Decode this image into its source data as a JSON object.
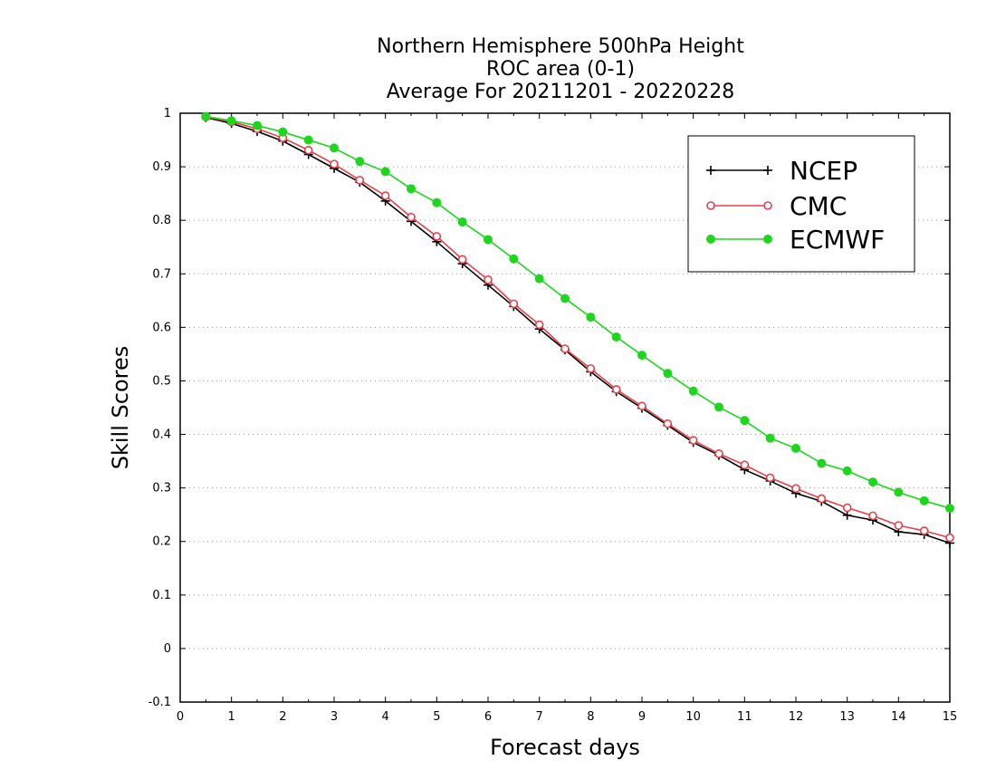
{
  "chart_data": {
    "type": "line",
    "title": [
      "Northern Hemisphere 500hPa Height",
      "ROC area (0-1)",
      "Average For 20211201 - 20220228"
    ],
    "xlabel": "Forecast days",
    "ylabel": "Skill Scores",
    "xlim": [
      0,
      15
    ],
    "ylim": [
      -0.1,
      1
    ],
    "xticks": [
      "0",
      "1",
      "2",
      "3",
      "4",
      "5",
      "6",
      "7",
      "8",
      "9",
      "10",
      "11",
      "12",
      "13",
      "14",
      "15"
    ],
    "yticks": [
      "1",
      "0.9",
      "0.8",
      "0.7",
      "0.6",
      "0.5",
      "0.4",
      "0.3",
      "0.2",
      "0.1",
      "0",
      "-0.1"
    ],
    "grid": "horizontal dotted",
    "legend_position": "top-right",
    "x": [
      0.5,
      1,
      1.5,
      2,
      2.5,
      3,
      3.5,
      4,
      4.5,
      5,
      5.5,
      6,
      6.5,
      7,
      7.5,
      8,
      8.5,
      9,
      9.5,
      10,
      10.5,
      11,
      11.5,
      12,
      12.5,
      13,
      13.5,
      14,
      14.5,
      15
    ],
    "series": [
      {
        "name": "NCEP",
        "color": "#000000",
        "marker": "plus",
        "values": [
          0.992,
          0.981,
          0.966,
          0.948,
          0.923,
          0.897,
          0.871,
          0.836,
          0.798,
          0.76,
          0.719,
          0.679,
          0.639,
          0.597,
          0.558,
          0.517,
          0.48,
          0.449,
          0.417,
          0.385,
          0.361,
          0.334,
          0.313,
          0.29,
          0.275,
          0.249,
          0.24,
          0.218,
          0.213,
          0.197
        ]
      },
      {
        "name": "CMC",
        "color": "#e8404a",
        "marker": "open-circle",
        "values": [
          0.993,
          0.984,
          0.971,
          0.954,
          0.931,
          0.905,
          0.875,
          0.846,
          0.806,
          0.77,
          0.727,
          0.689,
          0.644,
          0.605,
          0.56,
          0.523,
          0.484,
          0.453,
          0.42,
          0.389,
          0.364,
          0.343,
          0.319,
          0.299,
          0.28,
          0.263,
          0.248,
          0.23,
          0.22,
          0.207
        ]
      },
      {
        "name": "ECMWF",
        "color": "#1fd61f",
        "marker": "filled-circle",
        "values": [
          0.994,
          0.986,
          0.977,
          0.965,
          0.95,
          0.935,
          0.91,
          0.891,
          0.859,
          0.833,
          0.797,
          0.764,
          0.728,
          0.691,
          0.654,
          0.619,
          0.582,
          0.548,
          0.514,
          0.481,
          0.451,
          0.426,
          0.393,
          0.374,
          0.346,
          0.332,
          0.311,
          0.292,
          0.276,
          0.262
        ]
      }
    ]
  }
}
